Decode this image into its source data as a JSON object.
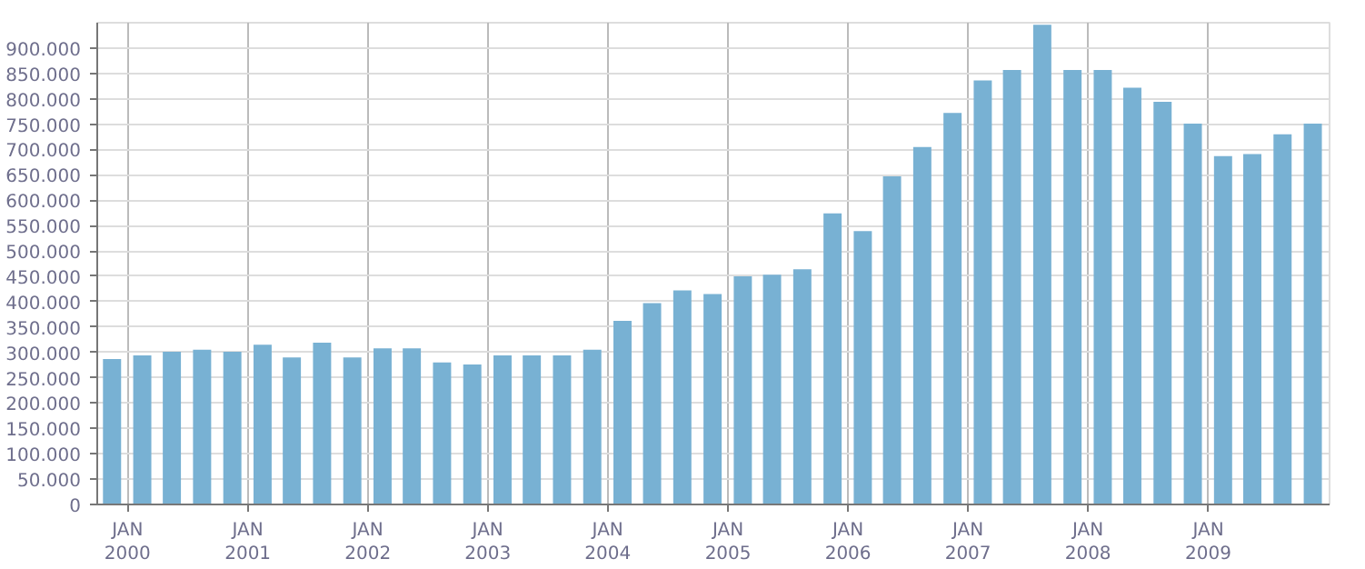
{
  "chart_data": {
    "type": "bar",
    "x": [
      "1999-11-15",
      "2000-02-15",
      "2000-05-15",
      "2000-08-15",
      "2000-11-15",
      "2001-02-15",
      "2001-05-15",
      "2001-08-15",
      "2001-11-15",
      "2002-02-15",
      "2002-05-15",
      "2002-08-15",
      "2002-11-15",
      "2003-02-15",
      "2003-05-15",
      "2003-08-15",
      "2003-11-15",
      "2004-02-15",
      "2004-05-15",
      "2004-08-15",
      "2004-11-15",
      "2005-02-15",
      "2005-05-15",
      "2005-08-15",
      "2005-11-15",
      "2006-02-15",
      "2006-05-15",
      "2006-08-15",
      "2006-11-15",
      "2007-02-15",
      "2007-05-15",
      "2007-08-15",
      "2007-11-15",
      "2008-02-15",
      "2008-05-15",
      "2008-08-15",
      "2008-11-15",
      "2009-02-15",
      "2009-05-15",
      "2009-08-15",
      "2009-11-15"
    ],
    "values": [
      287000,
      294000,
      301000,
      305000,
      301000,
      315000,
      290000,
      319000,
      290000,
      308000,
      308000,
      280000,
      276000,
      294000,
      294000,
      294000,
      305000,
      362000,
      397000,
      422000,
      415000,
      450000,
      453000,
      464000,
      574000,
      539000,
      647000,
      705000,
      772000,
      836000,
      857000,
      946000,
      857000,
      857000,
      822000,
      794000,
      751000,
      687000,
      691000,
      730000,
      751000
    ],
    "color": "#78b1d3",
    "xlim": [
      "1999-10-01",
      "2010-01-05"
    ],
    "xticks": [
      {
        "value": "2000-01-01",
        "label": "JAN\n2000"
      },
      {
        "value": "2001-01-01",
        "label": "JAN\n2001"
      },
      {
        "value": "2002-01-01",
        "label": "JAN\n2002"
      },
      {
        "value": "2003-01-01",
        "label": "JAN\n2003"
      },
      {
        "value": "2004-01-01",
        "label": "JAN\n2004"
      },
      {
        "value": "2005-01-01",
        "label": "JAN\n2005"
      },
      {
        "value": "2006-01-01",
        "label": "JAN\n2006"
      },
      {
        "value": "2007-01-01",
        "label": "JAN\n2007"
      },
      {
        "value": "2008-01-01",
        "label": "JAN\n2008"
      },
      {
        "value": "2009-01-01",
        "label": "JAN\n2009"
      }
    ],
    "ylim": [
      0,
      950000
    ],
    "yticks": [
      0,
      {
        "value": 50000,
        "label": "50.000"
      },
      {
        "value": 100000,
        "label": "100.000"
      },
      {
        "value": 150000,
        "label": "150.000"
      },
      {
        "value": 200000,
        "label": "200.000"
      },
      {
        "value": 250000,
        "label": "250.000"
      },
      {
        "value": 300000,
        "label": "300.000"
      },
      {
        "value": 350000,
        "label": "350.000"
      },
      {
        "value": 400000,
        "label": "400.000"
      },
      {
        "value": 450000,
        "label": "450.000"
      },
      {
        "value": 500000,
        "label": "500.000"
      },
      {
        "value": 550000,
        "label": "550.000"
      },
      {
        "value": 600000,
        "label": "600.000"
      },
      {
        "value": 650000,
        "label": "650.000"
      },
      {
        "value": 700000,
        "label": "700.000"
      },
      {
        "value": 750000,
        "label": "750.000"
      },
      {
        "value": 800000,
        "label": "800.000"
      },
      {
        "value": 850000,
        "label": "850.000"
      },
      {
        "value": 900000,
        "label": "900.000"
      }
    ],
    "grid": true
  }
}
